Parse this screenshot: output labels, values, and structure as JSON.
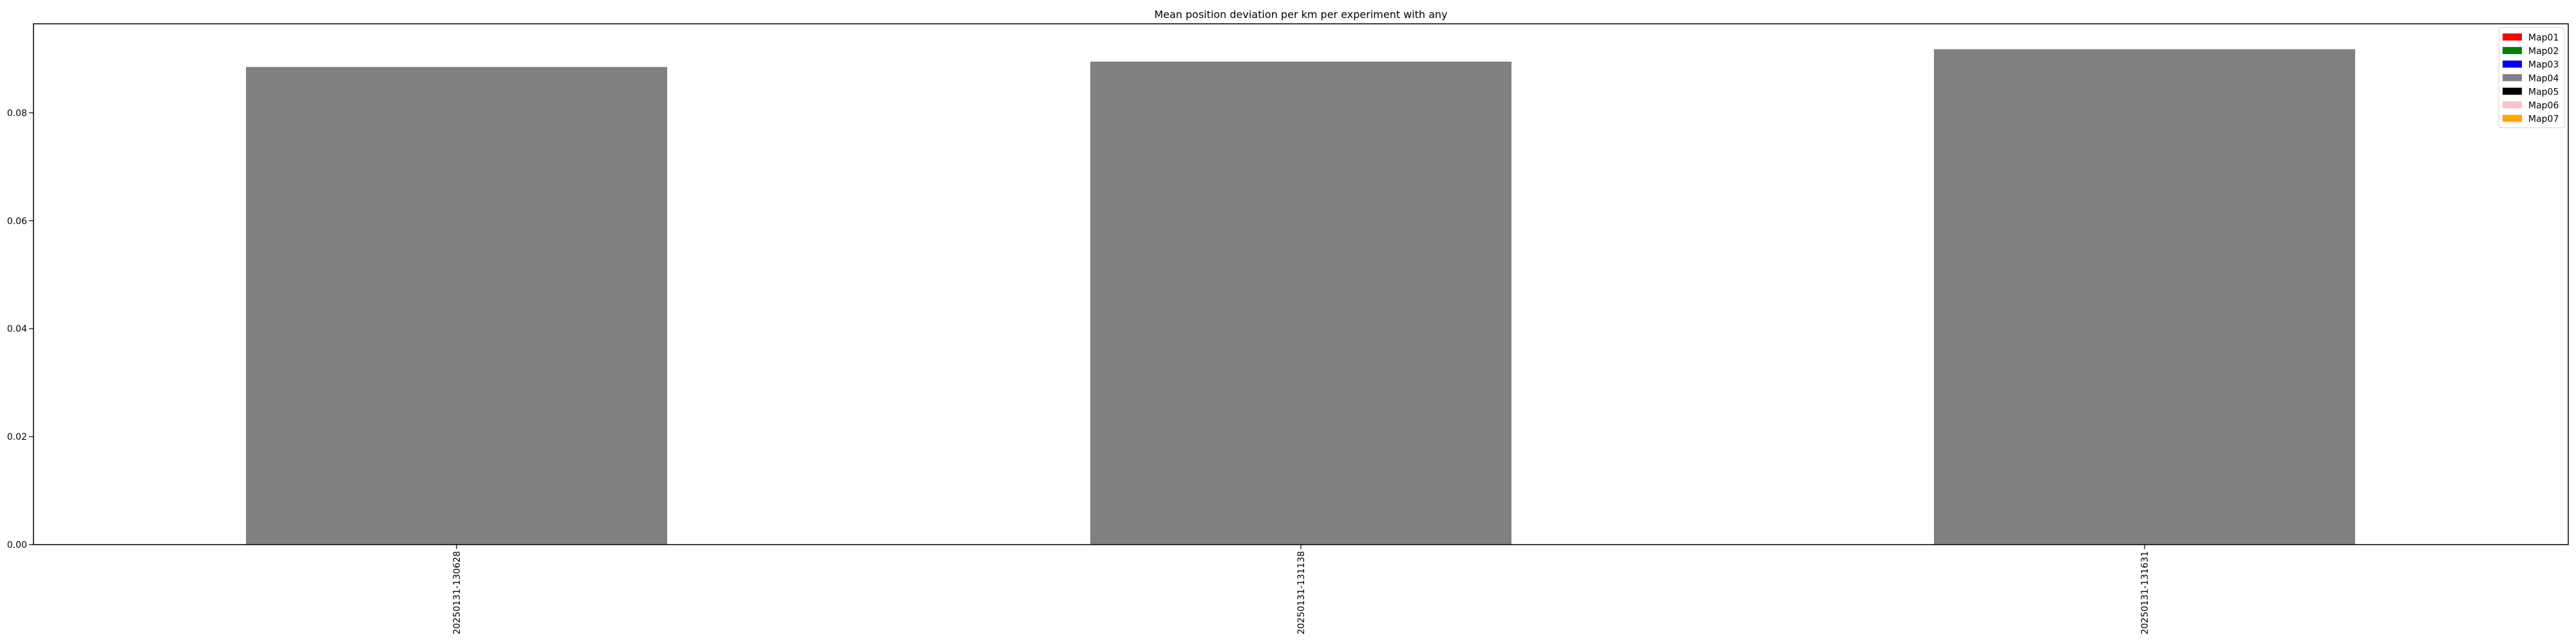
{
  "chart_data": {
    "type": "bar",
    "title": "Mean position deviation per km per experiment with any",
    "xlabel": "",
    "ylabel": "",
    "categories": [
      "20250131-130628",
      "20250131-131138",
      "20250131-131631"
    ],
    "values": [
      0.0885,
      0.0895,
      0.0918
    ],
    "bar_color": "#808080",
    "ylim": [
      0,
      0.0965
    ],
    "yticks": [
      {
        "value": 0.0,
        "label": "0.00"
      },
      {
        "value": 0.02,
        "label": "0.02"
      },
      {
        "value": 0.04,
        "label": "0.04"
      },
      {
        "value": 0.06,
        "label": "0.06"
      },
      {
        "value": 0.08,
        "label": "0.08"
      }
    ],
    "grid": false,
    "legend_position": "top-right",
    "legend": [
      {
        "label": "Map01",
        "color": "#ff0000"
      },
      {
        "label": "Map02",
        "color": "#008000"
      },
      {
        "label": "Map03",
        "color": "#0000ff"
      },
      {
        "label": "Map04",
        "color": "#808080"
      },
      {
        "label": "Map05",
        "color": "#000000"
      },
      {
        "label": "Map06",
        "color": "#ffc0cb"
      },
      {
        "label": "Map07",
        "color": "#ffa500"
      }
    ]
  }
}
